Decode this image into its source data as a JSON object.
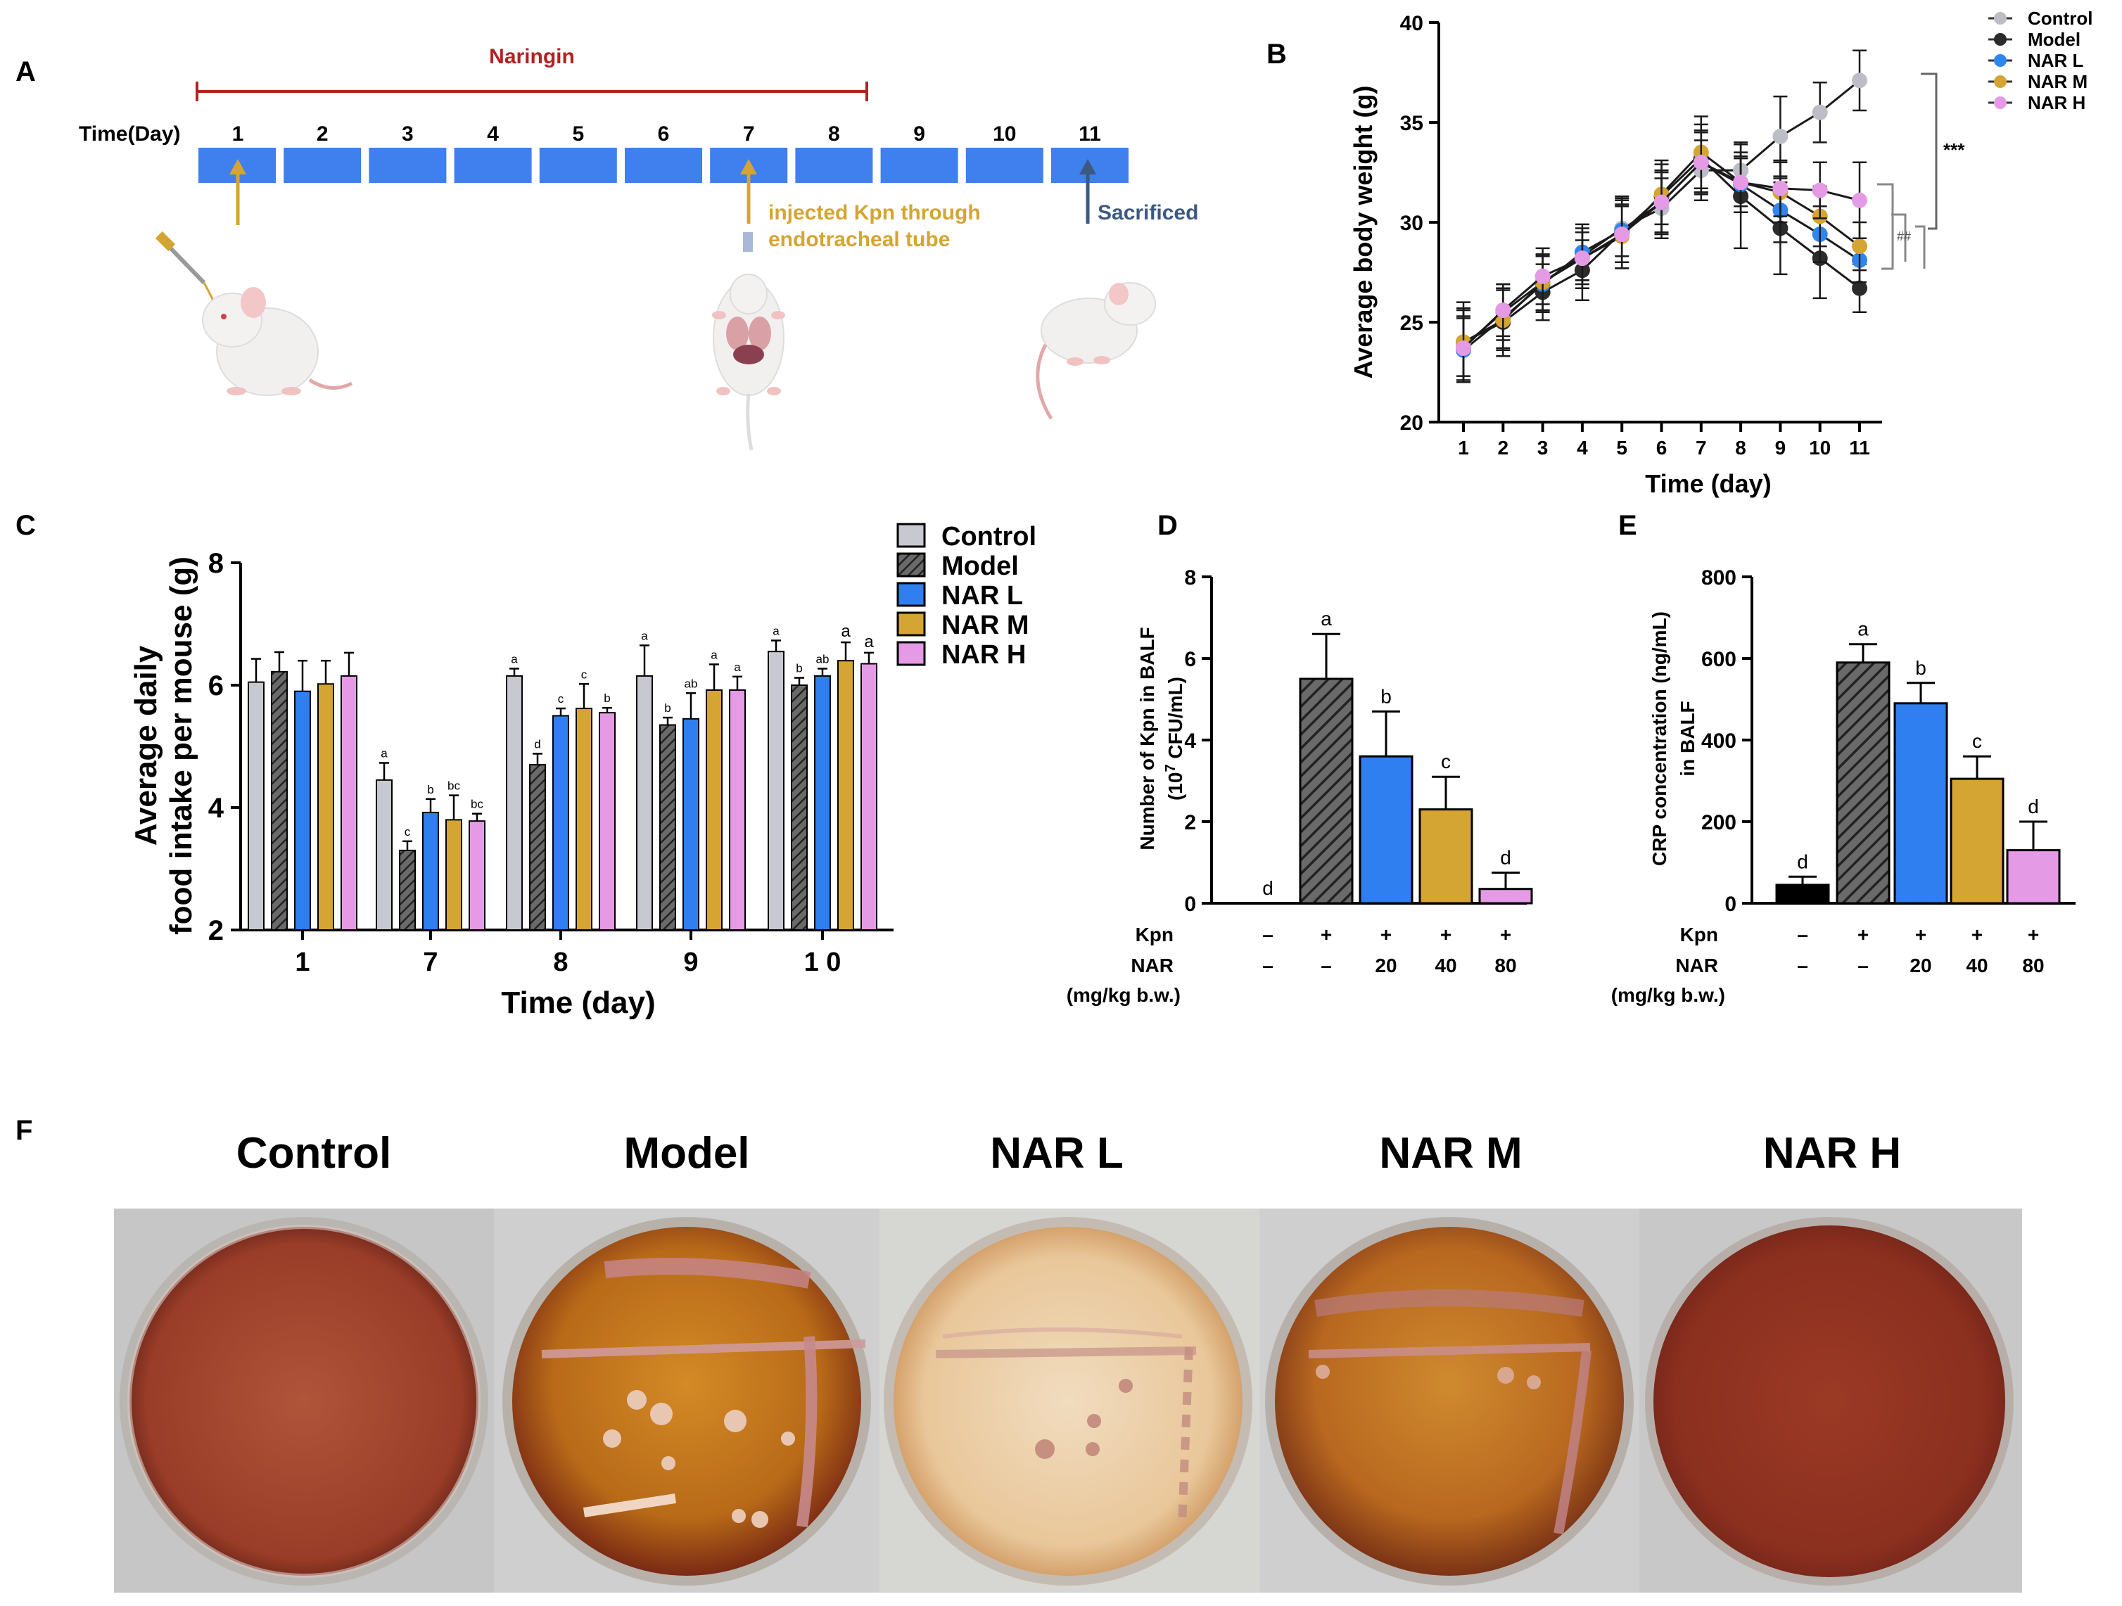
{
  "panel_letters": {
    "a": "A",
    "b": "B",
    "c": "C",
    "d": "D",
    "e": "E",
    "f": "F"
  },
  "panel_a": {
    "drug_label": "Naringin",
    "time_label": "Time(Day)",
    "days": [
      "1",
      "2",
      "3",
      "4",
      "5",
      "6",
      "7",
      "8",
      "9",
      "10",
      "11"
    ],
    "injection_label_1": "injected Kpn through",
    "injection_label_2": "endotracheal tube",
    "sacrifice_label": "Sacrificed",
    "colors": {
      "drug": "#b22222",
      "timeline": "#3f7fee",
      "arrow_gold": "#d4a532",
      "arrow_blue": "#3c5a80",
      "text_gold": "#d4a532"
    }
  },
  "panel_f": {
    "plate_labels": [
      "Control",
      "Model",
      "NAR L",
      "NAR M",
      "NAR H"
    ]
  },
  "chart_data": [
    {
      "id": "B",
      "type": "line",
      "xlabel": "Time (day)",
      "ylabel": "Average body weight (g)",
      "x": [
        1,
        2,
        3,
        4,
        5,
        6,
        7,
        8,
        9,
        10,
        11
      ],
      "xlim": [
        0.5,
        11.5
      ],
      "ylim": [
        20,
        40
      ],
      "yticks": [
        20,
        25,
        30,
        35,
        40
      ],
      "series": [
        {
          "name": "Control",
          "color": "#bdbdc7",
          "values": [
            23.8,
            25.5,
            27.0,
            28.3,
            29.7,
            30.7,
            32.6,
            32.6,
            34.3,
            35.5,
            37.1
          ],
          "errors": [
            1.8,
            1.4,
            1.4,
            1.2,
            1.4,
            1.5,
            1.5,
            1.4,
            2.0,
            1.5,
            1.5
          ]
        },
        {
          "name": "Model",
          "color": "#2b2b2b",
          "values": [
            24.0,
            25.0,
            26.5,
            27.6,
            29.5,
            31.3,
            33.2,
            31.3,
            29.7,
            28.2,
            26.7
          ],
          "errors": [
            2.0,
            1.7,
            1.4,
            1.5,
            1.8,
            1.8,
            1.7,
            2.6,
            2.3,
            2.0,
            1.2
          ]
        },
        {
          "name": "NAR L",
          "color": "#2f86ee",
          "values": [
            23.6,
            25.2,
            26.9,
            28.5,
            29.6,
            31.0,
            33.0,
            31.9,
            30.6,
            29.4,
            28.1
          ],
          "errors": [
            1.6,
            1.5,
            1.4,
            1.4,
            1.6,
            1.6,
            1.6,
            1.4,
            1.6,
            1.4,
            1.1
          ]
        },
        {
          "name": "NAR M",
          "color": "#d4a532",
          "values": [
            24.0,
            25.1,
            27.0,
            28.2,
            29.3,
            31.4,
            33.5,
            32.0,
            31.5,
            30.3,
            28.8
          ],
          "errors": [
            1.7,
            1.5,
            1.4,
            1.5,
            1.6,
            1.5,
            1.8,
            1.5,
            1.5,
            1.5,
            1.2
          ]
        },
        {
          "name": "NAR H",
          "color": "#e59ae6",
          "values": [
            23.7,
            25.6,
            27.3,
            28.2,
            29.4,
            31.0,
            33.0,
            32.0,
            31.7,
            31.6,
            31.1
          ],
          "errors": [
            1.6,
            1.3,
            1.4,
            1.3,
            1.4,
            1.5,
            1.5,
            1.2,
            1.4,
            1.4,
            1.9
          ]
        }
      ],
      "significance": [
        "***",
        "##"
      ]
    },
    {
      "id": "C",
      "type": "bar",
      "xlabel": "Time (day)",
      "ylabel_line1": "Average daily",
      "ylabel_line2": "food intake per mouse (g)",
      "categories": [
        "1",
        "7",
        "8",
        "9",
        "1 0"
      ],
      "ylim": [
        2,
        8
      ],
      "yticks": [
        2,
        4,
        6,
        8
      ],
      "series": [
        {
          "name": "Control",
          "color": "#c8c8d0",
          "pattern": "solid",
          "values": [
            6.05,
            4.45,
            6.15,
            6.15,
            6.55
          ],
          "errors": [
            0.38,
            0.28,
            0.12,
            0.5,
            0.18
          ],
          "letters": [
            "",
            "a",
            "a",
            "a",
            "a"
          ]
        },
        {
          "name": "Model",
          "color": "#444444",
          "pattern": "hatch",
          "values": [
            6.22,
            3.3,
            4.7,
            5.35,
            6.0
          ],
          "errors": [
            0.32,
            0.15,
            0.18,
            0.12,
            0.12
          ],
          "letters": [
            "",
            "c",
            "d",
            "b",
            "b"
          ]
        },
        {
          "name": "NAR L",
          "color": "#2f7ff0",
          "pattern": "solid",
          "values": [
            5.9,
            3.92,
            5.5,
            5.45,
            6.15
          ],
          "errors": [
            0.5,
            0.22,
            0.12,
            0.42,
            0.12
          ],
          "letters": [
            "",
            "b",
            "c",
            "ab",
            "ab"
          ]
        },
        {
          "name": "NAR M",
          "color": "#d4a532",
          "pattern": "solid",
          "values": [
            6.02,
            3.8,
            5.62,
            5.92,
            6.4
          ],
          "errors": [
            0.38,
            0.4,
            0.4,
            0.42,
            0.3
          ],
          "letters": [
            "",
            "bc",
            "c",
            "a",
            "a"
          ]
        },
        {
          "name": "NAR H",
          "color": "#e59ae6",
          "pattern": "solid",
          "values": [
            6.15,
            3.78,
            5.55,
            5.92,
            6.35
          ],
          "errors": [
            0.38,
            0.12,
            0.08,
            0.22,
            0.18
          ],
          "letters": [
            "",
            "bc",
            "b",
            "a",
            "a"
          ]
        }
      ]
    },
    {
      "id": "D",
      "type": "bar",
      "ylabel_line1": "Number of Kpn in BALF",
      "ylabel_line2": "(10",
      "ylabel_sup": "7",
      "ylabel_line2b": " CFU/mL)",
      "ylim": [
        0,
        8
      ],
      "yticks": [
        0,
        2,
        4,
        6,
        8
      ],
      "groups": [
        "Control",
        "Model",
        "NAR L",
        "NAR M",
        "NAR H"
      ],
      "colors": [
        "#000000",
        "#444444",
        "#2f7ff0",
        "#d4a532",
        "#e59ae6"
      ],
      "patterns": [
        "solid",
        "hatch",
        "solid",
        "solid",
        "solid"
      ],
      "values": [
        0,
        5.5,
        3.6,
        2.3,
        0.35
      ],
      "errors": [
        0,
        1.1,
        1.1,
        0.8,
        0.4
      ],
      "letters": [
        "d",
        "a",
        "b",
        "c",
        "d"
      ],
      "row_labels": {
        "kpn": "Kpn",
        "nar": "NAR",
        "unit": "(mg/kg b.w.)"
      },
      "kpn_row": [
        "–",
        "+",
        "+",
        "+",
        "+"
      ],
      "nar_row": [
        "–",
        "–",
        "20",
        "40",
        "80"
      ]
    },
    {
      "id": "E",
      "type": "bar",
      "ylabel_line1": "CRP concentration (ng/mL)",
      "ylabel_line2": "in BALF",
      "ylim": [
        0,
        800
      ],
      "yticks": [
        0,
        200,
        400,
        600,
        800
      ],
      "groups": [
        "Control",
        "Model",
        "NAR L",
        "NAR M",
        "NAR H"
      ],
      "colors": [
        "#000000",
        "#444444",
        "#2f7ff0",
        "#d4a532",
        "#e59ae6"
      ],
      "patterns": [
        "solid",
        "hatch",
        "solid",
        "solid",
        "solid"
      ],
      "values": [
        45,
        590,
        490,
        305,
        130
      ],
      "errors": [
        20,
        45,
        50,
        55,
        70
      ],
      "letters": [
        "d",
        "a",
        "b",
        "c",
        "d"
      ],
      "row_labels": {
        "kpn": "Kpn",
        "nar": "NAR",
        "unit": "(mg/kg b.w.)"
      },
      "kpn_row": [
        "–",
        "+",
        "+",
        "+",
        "+"
      ],
      "nar_row": [
        "–",
        "–",
        "20",
        "40",
        "80"
      ]
    }
  ]
}
